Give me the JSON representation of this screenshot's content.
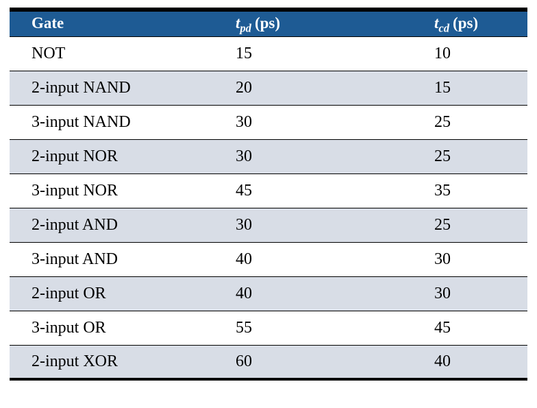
{
  "table": {
    "header": {
      "gate": "Gate",
      "tpd": {
        "symbol": "t",
        "sub": "pd",
        "unit": "(ps)"
      },
      "tcd": {
        "symbol": "t",
        "sub": "cd",
        "unit": "(ps)"
      }
    },
    "rows": [
      {
        "gate": "NOT",
        "tpd": "15",
        "tcd": "10"
      },
      {
        "gate": "2-input NAND",
        "tpd": "20",
        "tcd": "15"
      },
      {
        "gate": "3-input NAND",
        "tpd": "30",
        "tcd": "25"
      },
      {
        "gate": "2-input NOR",
        "tpd": "30",
        "tcd": "25"
      },
      {
        "gate": "3-input NOR",
        "tpd": "45",
        "tcd": "35"
      },
      {
        "gate": "2-input AND",
        "tpd": "30",
        "tcd": "25"
      },
      {
        "gate": "3-input AND",
        "tpd": "40",
        "tcd": "30"
      },
      {
        "gate": "2-input OR",
        "tpd": "40",
        "tcd": "30"
      },
      {
        "gate": "3-input OR",
        "tpd": "55",
        "tcd": "45"
      },
      {
        "gate": "2-input XOR",
        "tpd": "60",
        "tcd": "40"
      }
    ]
  },
  "colors": {
    "header_bg": "#1e5b94",
    "header_text": "#ffffff",
    "row_plain_bg": "#ffffff",
    "row_shaded_bg": "#d8dde6",
    "border": "#000000"
  },
  "chart_data": {
    "type": "table",
    "columns": [
      "Gate",
      "t_pd (ps)",
      "t_cd (ps)"
    ],
    "rows": [
      [
        "NOT",
        15,
        10
      ],
      [
        "2-input NAND",
        20,
        15
      ],
      [
        "3-input NAND",
        30,
        25
      ],
      [
        "2-input NOR",
        30,
        25
      ],
      [
        "3-input NOR",
        45,
        35
      ],
      [
        "2-input AND",
        30,
        25
      ],
      [
        "3-input AND",
        40,
        30
      ],
      [
        "2-input OR",
        40,
        30
      ],
      [
        "3-input OR",
        55,
        45
      ],
      [
        "2-input XOR",
        60,
        40
      ]
    ]
  }
}
